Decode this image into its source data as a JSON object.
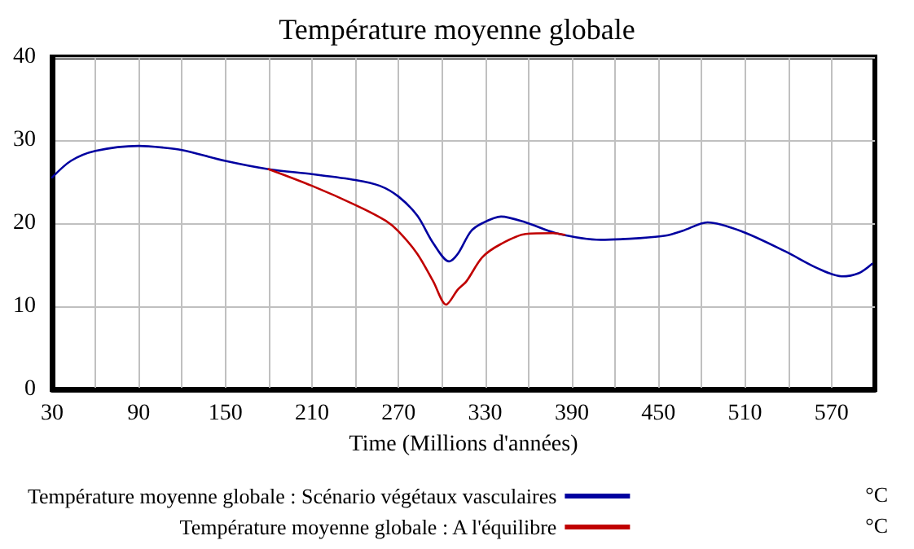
{
  "chart_data": {
    "type": "line",
    "title": "Température moyenne globale",
    "xlabel": "Time (Millions d'années)",
    "xlim": [
      30,
      600
    ],
    "xticks": [
      30,
      {
        "value": 60,
        "label": null
      },
      90,
      {
        "value": 120,
        "label": null
      },
      150,
      {
        "value": 180,
        "label": null
      },
      210,
      {
        "value": 240,
        "label": null
      },
      270,
      {
        "value": 300,
        "label": null
      },
      330,
      {
        "value": 360,
        "label": null
      },
      390,
      {
        "value": 420,
        "label": null
      },
      450,
      {
        "value": 480,
        "label": null
      },
      510,
      {
        "value": 540,
        "label": null
      },
      570
    ],
    "ylim": [
      0,
      40
    ],
    "yticks": [
      0,
      10,
      20,
      30,
      40
    ],
    "grid": true,
    "legend": "bottom",
    "marker": "none",
    "line_style": "solid",
    "annotations": [
      "°C",
      "°C"
    ],
    "series": [
      {
        "name": "Température moyenne globale : Scénario végétaux vasculaires",
        "color": "#0000a0",
        "x": [
          30,
          43,
          60,
          90,
          107,
          120,
          150,
          180,
          210,
          240,
          257,
          270,
          283,
          294,
          305,
          311,
          320,
          328,
          341,
          358,
          379,
          410,
          437,
          455,
          467,
          484,
          508,
          538,
          560,
          577,
          589,
          598
        ],
        "values": [
          25.5,
          27.5,
          28.7,
          29.3,
          29.1,
          28.8,
          27.5,
          26.5,
          25.9,
          25.2,
          24.5,
          23.2,
          20.9,
          17.6,
          15.4,
          16.3,
          19,
          20,
          20.8,
          20.1,
          18.8,
          18,
          18.2,
          18.5,
          19.1,
          20.1,
          19,
          16.6,
          14.6,
          13.6,
          14,
          15.1
        ]
      },
      {
        "name": "Température moyenne globale : A l'équilibre",
        "color": "#c00000",
        "x": [
          180,
          210,
          240,
          261,
          270,
          283,
          294,
          303,
          311,
          317,
          328,
          341,
          358,
          377,
          385
        ],
        "values": [
          26.5,
          24.5,
          22.2,
          20.3,
          19,
          16.3,
          13,
          10.2,
          12,
          13,
          15.9,
          17.5,
          18.7,
          18.8,
          18.6
        ]
      }
    ]
  }
}
